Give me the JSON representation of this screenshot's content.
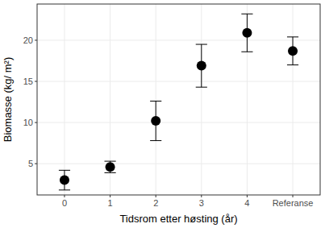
{
  "chart_data": {
    "type": "scatter",
    "x_label": "Tidsrom etter høsting (år)",
    "y_label": "Biomasse (kg/ m²)",
    "categories": [
      "0",
      "1",
      "2",
      "3",
      "4",
      "Referanse"
    ],
    "values": [
      3.0,
      4.6,
      10.2,
      16.9,
      20.9,
      18.7
    ],
    "errors": [
      1.2,
      0.7,
      2.4,
      2.6,
      2.3,
      1.7
    ],
    "color": "#000000",
    "marker": "circle",
    "ylim": [
      1.2,
      24.4
    ],
    "yticks": [
      5,
      10,
      15,
      20
    ],
    "grid": true
  }
}
